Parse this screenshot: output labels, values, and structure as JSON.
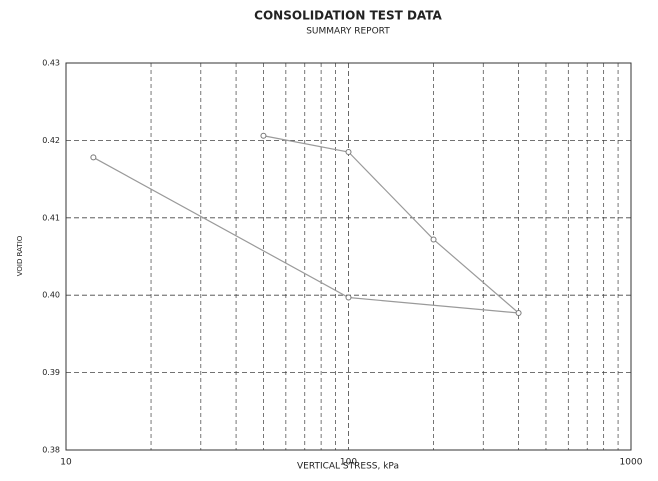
{
  "chart_data": {
    "type": "line",
    "title": "CONSOLIDATION TEST DATA",
    "subtitle": "SUMMARY REPORT",
    "x_label": "VERTICAL STRESS, kPa",
    "y_label": "VOID RATIO",
    "x_scale": "log",
    "xlim": [
      10,
      1000
    ],
    "xticks": [
      10,
      100,
      1000
    ],
    "ylim": [
      0.38,
      0.43
    ],
    "yticks": [
      {
        "value": 0.38,
        "label": "0.38"
      },
      {
        "value": 0.39,
        "label": "0.39"
      },
      {
        "value": 0.4,
        "label": "0.40"
      },
      {
        "value": 0.41,
        "label": "0.41"
      },
      {
        "value": 0.42,
        "label": "0.42"
      },
      {
        "value": 0.43,
        "label": "0.43"
      }
    ],
    "grid": true,
    "minor_grid": true,
    "x": [
      50,
      100,
      200,
      400,
      100,
      12.5
    ],
    "series": [
      {
        "color": "#9a9a9a",
        "values": [
          0.4206,
          0.4185,
          0.4072,
          0.3977,
          0.3997,
          0.4178
        ]
      }
    ]
  }
}
